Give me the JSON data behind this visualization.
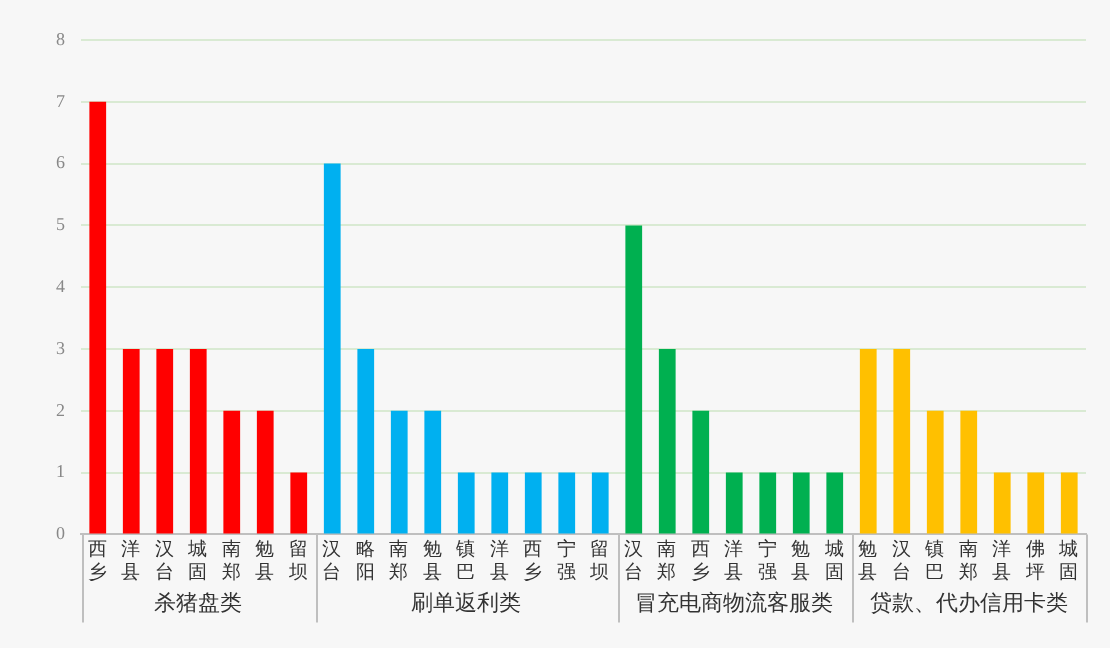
{
  "chart_data": {
    "type": "bar",
    "categories": [
      "西乡",
      "洋县",
      "汉台",
      "城固",
      "南郑",
      "勉县",
      "留坝",
      "汉台",
      "略阳",
      "南郑",
      "勉县",
      "镇巴",
      "洋县",
      "西乡",
      "宁强",
      "留坝",
      "汉台",
      "南郑",
      "西乡",
      "洋县",
      "宁强",
      "勉县",
      "城固",
      "勉县",
      "汉台",
      "镇巴",
      "南郑",
      "洋县",
      "佛坪",
      "城固"
    ],
    "series": [
      {
        "name": "杀猪盘类",
        "color": "#ff0000",
        "values": [
          7,
          3,
          3,
          3,
          2,
          2,
          1,
          null,
          null,
          null,
          null,
          null,
          null,
          null,
          null,
          null,
          null,
          null,
          null,
          null,
          null,
          null,
          null,
          null,
          null,
          null,
          null,
          null,
          null,
          null
        ]
      },
      {
        "name": "刷单返利类",
        "color": "#00b0f0",
        "values": [
          null,
          null,
          null,
          null,
          null,
          null,
          null,
          6,
          3,
          2,
          2,
          1,
          1,
          1,
          1,
          1,
          null,
          null,
          null,
          null,
          null,
          null,
          null,
          null,
          null,
          null,
          null,
          null,
          null,
          null
        ]
      },
      {
        "name": "冒充电商物流客服类",
        "color": "#00b050",
        "values": [
          null,
          null,
          null,
          null,
          null,
          null,
          null,
          null,
          null,
          null,
          null,
          null,
          null,
          null,
          null,
          null,
          5,
          3,
          2,
          1,
          1,
          1,
          1,
          null,
          null,
          null,
          null,
          null,
          null,
          null
        ]
      },
      {
        "name": "贷款、代办信用卡类",
        "color": "#ffc000",
        "values": [
          null,
          null,
          null,
          null,
          null,
          null,
          null,
          null,
          null,
          null,
          null,
          null,
          null,
          null,
          null,
          null,
          null,
          null,
          null,
          null,
          null,
          null,
          null,
          3,
          3,
          2,
          2,
          1,
          1,
          1
        ]
      }
    ],
    "ylim": [
      0,
      8
    ],
    "yticks": [
      0,
      1,
      2,
      3,
      4,
      5,
      6,
      7,
      8
    ],
    "grid": "y",
    "legend": false
  }
}
